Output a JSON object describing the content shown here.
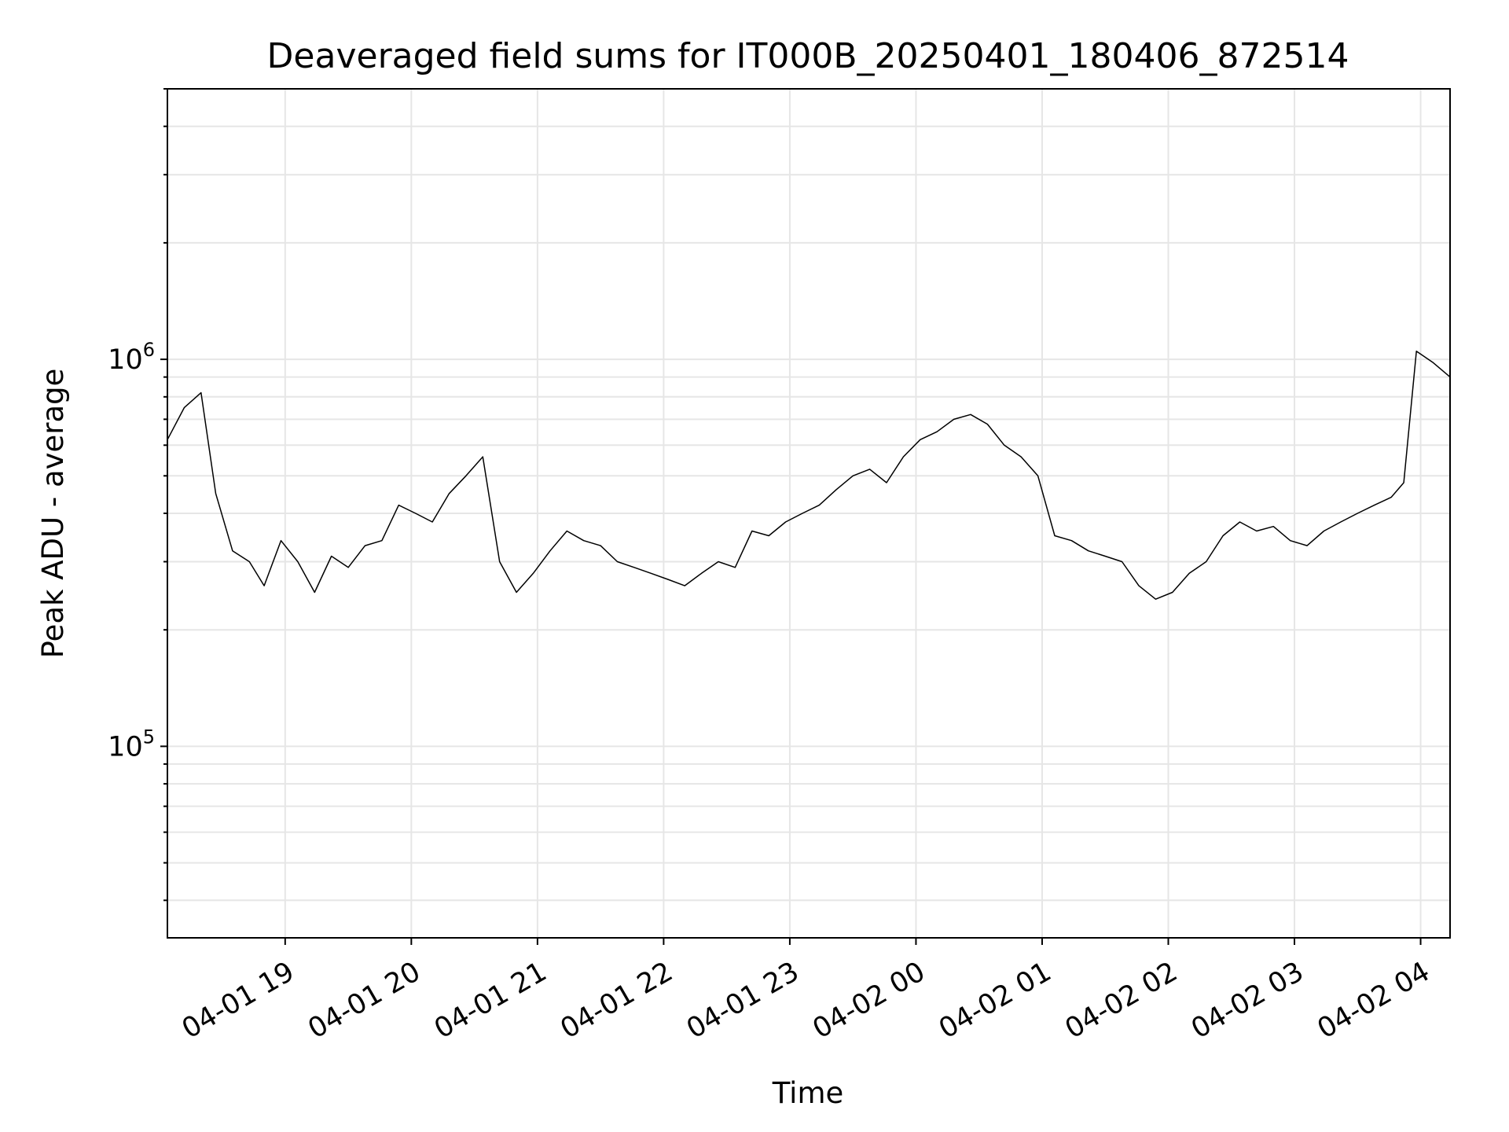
{
  "chart_data": {
    "type": "line",
    "title": "Deaveraged field sums for IT000B_20250401_180406_872514",
    "xlabel": "Time",
    "ylabel": "Peak ADU - average",
    "x_scale": "time",
    "y_scale": "log",
    "xlim": [
      "2025-04-01 18:04",
      "2025-04-02 04:14"
    ],
    "ylim": [
      32000,
      5000000
    ],
    "x_ticks": [
      {
        "t": "2025-04-01 19:00",
        "label": "04-01 19"
      },
      {
        "t": "2025-04-01 20:00",
        "label": "04-01 20"
      },
      {
        "t": "2025-04-01 21:00",
        "label": "04-01 21"
      },
      {
        "t": "2025-04-01 22:00",
        "label": "04-01 22"
      },
      {
        "t": "2025-04-01 23:00",
        "label": "04-01 23"
      },
      {
        "t": "2025-04-02 00:00",
        "label": "04-02 00"
      },
      {
        "t": "2025-04-02 01:00",
        "label": "04-02 01"
      },
      {
        "t": "2025-04-02 02:00",
        "label": "04-02 02"
      },
      {
        "t": "2025-04-02 03:00",
        "label": "04-02 03"
      },
      {
        "t": "2025-04-02 04:00",
        "label": "04-02 04"
      }
    ],
    "y_ticks": [
      {
        "value": 100000,
        "base": "10",
        "exponent": "5"
      },
      {
        "value": 1000000,
        "base": "10",
        "exponent": "6"
      }
    ],
    "grid": true,
    "x_tick_rotation_deg": 30,
    "line_color": "#000000",
    "grid_color": "#e6e6e6",
    "series": [
      {
        "x": [
          "2025-04-01 18:04",
          "2025-04-01 18:12",
          "2025-04-01 18:20",
          "2025-04-01 18:27",
          "2025-04-01 18:35",
          "2025-04-01 18:43",
          "2025-04-01 18:50",
          "2025-04-01 18:58",
          "2025-04-01 19:06",
          "2025-04-01 19:14",
          "2025-04-01 19:22",
          "2025-04-01 19:30",
          "2025-04-01 19:38",
          "2025-04-01 19:46",
          "2025-04-01 19:54",
          "2025-04-01 20:02",
          "2025-04-01 20:10",
          "2025-04-01 20:18",
          "2025-04-01 20:26",
          "2025-04-01 20:34",
          "2025-04-01 20:42",
          "2025-04-01 20:50",
          "2025-04-01 20:58",
          "2025-04-01 21:06",
          "2025-04-01 21:14",
          "2025-04-01 21:22",
          "2025-04-01 21:30",
          "2025-04-01 21:38",
          "2025-04-01 21:46",
          "2025-04-01 21:54",
          "2025-04-01 22:02",
          "2025-04-01 22:10",
          "2025-04-01 22:18",
          "2025-04-01 22:26",
          "2025-04-01 22:34",
          "2025-04-01 22:42",
          "2025-04-01 22:50",
          "2025-04-01 22:58",
          "2025-04-01 23:06",
          "2025-04-01 23:14",
          "2025-04-01 23:22",
          "2025-04-01 23:30",
          "2025-04-01 23:38",
          "2025-04-01 23:46",
          "2025-04-01 23:54",
          "2025-04-02 00:02",
          "2025-04-02 00:10",
          "2025-04-02 00:18",
          "2025-04-02 00:26",
          "2025-04-02 00:34",
          "2025-04-02 00:42",
          "2025-04-02 00:50",
          "2025-04-02 00:58",
          "2025-04-02 01:06",
          "2025-04-02 01:14",
          "2025-04-02 01:22",
          "2025-04-02 01:30",
          "2025-04-02 01:38",
          "2025-04-02 01:46",
          "2025-04-02 01:54",
          "2025-04-02 02:02",
          "2025-04-02 02:10",
          "2025-04-02 02:18",
          "2025-04-02 02:26",
          "2025-04-02 02:34",
          "2025-04-02 02:42",
          "2025-04-02 02:50",
          "2025-04-02 02:58",
          "2025-04-02 03:06",
          "2025-04-02 03:14",
          "2025-04-02 03:22",
          "2025-04-02 03:30",
          "2025-04-02 03:38",
          "2025-04-02 03:46",
          "2025-04-02 03:52",
          "2025-04-02 03:58",
          "2025-04-02 04:06",
          "2025-04-02 04:14"
        ],
        "y": [
          620000,
          750000,
          820000,
          450000,
          320000,
          300000,
          260000,
          340000,
          300000,
          250000,
          310000,
          290000,
          330000,
          340000,
          420000,
          400000,
          380000,
          450000,
          500000,
          560000,
          300000,
          250000,
          280000,
          320000,
          360000,
          340000,
          330000,
          300000,
          290000,
          280000,
          270000,
          260000,
          280000,
          300000,
          290000,
          360000,
          350000,
          380000,
          400000,
          420000,
          460000,
          500000,
          520000,
          480000,
          560000,
          620000,
          650000,
          700000,
          720000,
          680000,
          600000,
          560000,
          500000,
          350000,
          340000,
          320000,
          310000,
          300000,
          260000,
          240000,
          250000,
          280000,
          300000,
          350000,
          380000,
          360000,
          370000,
          340000,
          330000,
          360000,
          380000,
          400000,
          420000,
          440000,
          480000,
          1050000,
          980000,
          900000
        ]
      }
    ]
  }
}
